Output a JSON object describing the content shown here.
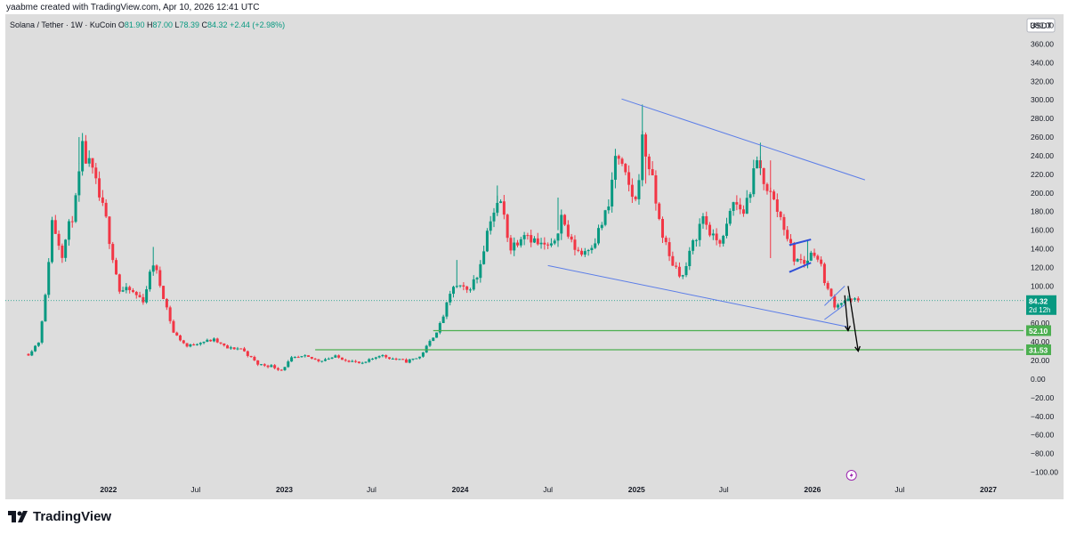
{
  "credit": "yaabme created with TradingView.com, Apr 10, 2026 12:41 UTC",
  "symbol": {
    "name": "Solana / Tether · 1W · KuCoin",
    "o_label": "O",
    "o": "81.90",
    "h_label": "H",
    "h": "87.00",
    "l_label": "L",
    "l": "78.39",
    "c_label": "C",
    "c": "84.32",
    "change": "+2.44 (+2.98%)"
  },
  "currency": "USDT",
  "brand": "TradingView",
  "colors": {
    "up": "#089981",
    "down": "#f23645",
    "trend": "#5b7de8",
    "channel": "#2f4fd8",
    "support": "#4caf50",
    "arrow": "#000000",
    "background": "#dddddd"
  },
  "chart_data": {
    "type": "candlestick",
    "title": "Solana / Tether · 1W · KuCoin",
    "y_ticks": [
      380,
      360,
      340,
      320,
      300,
      280,
      260,
      240,
      220,
      200,
      180,
      160,
      140,
      120,
      100,
      80,
      60,
      40,
      20,
      0,
      -20,
      -40,
      -60,
      -80,
      -100
    ],
    "y_tick_labels": [
      "380.00",
      "360.00",
      "340.00",
      "320.00",
      "300.00",
      "280.00",
      "260.00",
      "240.00",
      "220.00",
      "200.00",
      "180.00",
      "160.00",
      "140.00",
      "120.00",
      "100.00",
      "80.00",
      "60.00",
      "40.00",
      "20.00",
      "0.00",
      "−20.00",
      "−40.00",
      "−60.00",
      "−80.00",
      "−100.00"
    ],
    "ylim": [
      -110,
      392
    ],
    "x_range": [
      "2021-06-01",
      "2027-03-15"
    ],
    "x_ticks": [
      {
        "label": "2022",
        "date": "2022-01-01",
        "bold": true
      },
      {
        "label": "Jul",
        "date": "2022-07-01",
        "bold": false
      },
      {
        "label": "2023",
        "date": "2023-01-01",
        "bold": true
      },
      {
        "label": "Jul",
        "date": "2023-07-01",
        "bold": false
      },
      {
        "label": "2024",
        "date": "2024-01-01",
        "bold": true
      },
      {
        "label": "Jul",
        "date": "2024-07-01",
        "bold": false
      },
      {
        "label": "2025",
        "date": "2025-01-01",
        "bold": true
      },
      {
        "label": "Jul",
        "date": "2025-07-01",
        "bold": false
      },
      {
        "label": "2026",
        "date": "2026-01-01",
        "bold": true
      },
      {
        "label": "Jul",
        "date": "2026-07-01",
        "bold": false
      },
      {
        "label": "2027",
        "date": "2027-01-01",
        "bold": true
      }
    ],
    "price_path": [
      [
        "2021-07-19",
        27
      ],
      [
        "2021-08-09",
        40
      ],
      [
        "2021-08-23",
        88
      ],
      [
        "2021-09-06",
        170
      ],
      [
        "2021-09-27",
        136
      ],
      [
        "2021-10-25",
        190
      ],
      [
        "2021-11-08",
        245
      ],
      [
        "2021-11-29",
        220
      ],
      [
        "2021-12-27",
        170
      ],
      [
        "2022-01-24",
        95
      ],
      [
        "2022-02-14",
        95
      ],
      [
        "2022-03-14",
        85
      ],
      [
        "2022-04-04",
        125
      ],
      [
        "2022-04-25",
        90
      ],
      [
        "2022-05-16",
        50
      ],
      [
        "2022-06-13",
        35
      ],
      [
        "2022-07-11",
        40
      ],
      [
        "2022-08-08",
        42
      ],
      [
        "2022-09-05",
        33
      ],
      [
        "2022-10-03",
        33
      ],
      [
        "2022-11-07",
        16
      ],
      [
        "2022-12-05",
        14
      ],
      [
        "2022-12-26",
        10
      ],
      [
        "2023-01-16",
        22
      ],
      [
        "2023-02-13",
        24
      ],
      [
        "2023-03-13",
        20
      ],
      [
        "2023-04-17",
        24
      ],
      [
        "2023-05-15",
        20
      ],
      [
        "2023-06-12",
        16
      ],
      [
        "2023-07-17",
        26
      ],
      [
        "2023-08-14",
        22
      ],
      [
        "2023-09-11",
        19
      ],
      [
        "2023-10-09",
        24
      ],
      [
        "2023-10-30",
        40
      ],
      [
        "2023-11-20",
        58
      ],
      [
        "2023-12-18",
        100
      ],
      [
        "2024-01-15",
        95
      ],
      [
        "2024-02-05",
        110
      ],
      [
        "2024-03-04",
        175
      ],
      [
        "2024-03-25",
        190
      ],
      [
        "2024-04-15",
        140
      ],
      [
        "2024-05-13",
        160
      ],
      [
        "2024-06-10",
        145
      ],
      [
        "2024-07-08",
        140
      ],
      [
        "2024-07-29",
        175
      ],
      [
        "2024-08-19",
        145
      ],
      [
        "2024-09-09",
        135
      ],
      [
        "2024-10-07",
        150
      ],
      [
        "2024-11-04",
        185
      ],
      [
        "2024-11-18",
        240
      ],
      [
        "2024-12-09",
        215
      ],
      [
        "2024-12-30",
        190
      ],
      [
        "2025-01-13",
        255
      ],
      [
        "2025-01-27",
        230
      ],
      [
        "2025-02-17",
        170
      ],
      [
        "2025-03-10",
        130
      ],
      [
        "2025-04-07",
        110
      ],
      [
        "2025-04-28",
        145
      ],
      [
        "2025-05-19",
        175
      ],
      [
        "2025-06-09",
        150
      ],
      [
        "2025-06-30",
        150
      ],
      [
        "2025-07-21",
        190
      ],
      [
        "2025-08-11",
        180
      ],
      [
        "2025-09-08",
        230
      ],
      [
        "2025-09-22",
        215
      ],
      [
        "2025-10-13",
        190
      ],
      [
        "2025-11-03",
        165
      ],
      [
        "2025-11-24",
        130
      ],
      [
        "2025-12-15",
        125
      ],
      [
        "2026-01-05",
        138
      ],
      [
        "2026-01-19",
        120
      ],
      [
        "2026-02-02",
        95
      ],
      [
        "2026-02-16",
        80
      ],
      [
        "2026-03-09",
        84
      ],
      [
        "2026-04-06",
        84.32
      ]
    ],
    "events": [
      [
        "2021-11-01",
        260,
        232,
        "up"
      ],
      [
        "2022-04-04",
        142,
        118,
        "up"
      ],
      [
        "2023-12-25",
        128,
        98,
        "up"
      ],
      [
        "2024-03-18",
        208,
        175,
        "up"
      ],
      [
        "2024-07-22",
        195,
        160,
        "up"
      ],
      [
        "2025-01-13",
        295,
        240,
        "up"
      ],
      [
        "2025-01-20",
        262,
        210,
        "down"
      ],
      [
        "2025-09-15",
        254,
        220,
        "up"
      ],
      [
        "2025-10-06",
        235,
        130,
        "down"
      ],
      [
        "2025-12-22",
        150,
        120,
        "up"
      ]
    ],
    "trendlines": [
      {
        "from": [
          "2024-12-01",
          301
        ],
        "to": [
          "2026-04-20",
          214
        ],
        "kind": "trend"
      },
      {
        "from": [
          "2024-07-01",
          122
        ],
        "to": [
          "2026-03-16",
          56
        ],
        "kind": "trend"
      },
      {
        "from": [
          "2025-11-14",
          144
        ],
        "to": [
          "2025-12-29",
          150
        ],
        "kind": "channel"
      },
      {
        "from": [
          "2025-11-14",
          115
        ],
        "to": [
          "2025-12-29",
          125
        ],
        "kind": "channel"
      },
      {
        "from": [
          "2026-01-26",
          79
        ],
        "to": [
          "2026-03-09",
          100
        ],
        "kind": "trend"
      },
      {
        "from": [
          "2026-01-26",
          64
        ],
        "to": [
          "2026-03-09",
          80
        ],
        "kind": "trend"
      }
    ],
    "levels": [
      {
        "value": 52.1,
        "label": "52.10",
        "from": "2023-11-06"
      },
      {
        "value": 31.53,
        "label": "31.53",
        "from": "2023-03-06"
      }
    ],
    "arrows": [
      {
        "from": [
          "2026-03-09",
          90
        ],
        "to": [
          "2026-03-16",
          52
        ]
      },
      {
        "from": [
          "2026-03-16",
          100
        ],
        "to": [
          "2026-04-06",
          30
        ]
      }
    ],
    "last_price": {
      "value": 84.32,
      "label": "84.32",
      "countdown": "2d 12h"
    },
    "event_marker_date": "2026-03-23"
  }
}
